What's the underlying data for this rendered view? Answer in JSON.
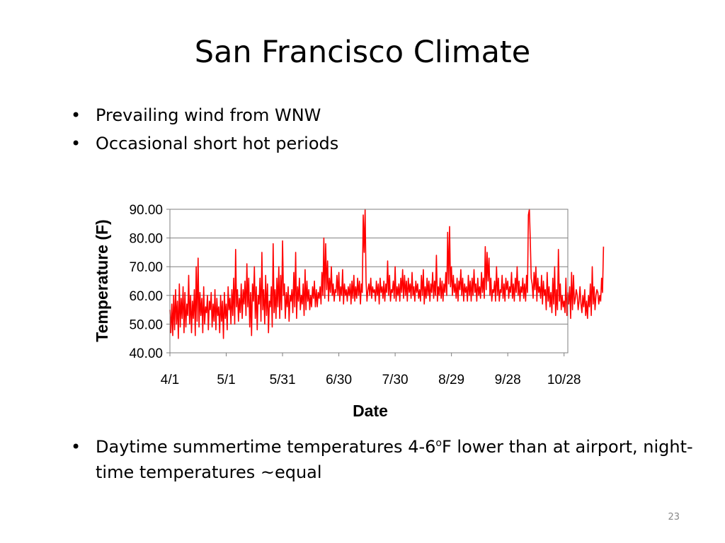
{
  "slide": {
    "title": "San Francisco Climate",
    "bullets": [
      "Prevailing wind from WNW",
      "Occasional short hot periods"
    ],
    "bottom_bullet": {
      "text_before": "Daytime summertime temperatures 4-6",
      "superscript": "o",
      "text_after": "F lower than at airport, night-time temperatures ~equal"
    },
    "bullet_glyph": "•",
    "page_number": "23"
  },
  "colors": {
    "series": "#ff0000",
    "gridline": "#7f7f7f",
    "axis": "#7f7f7f"
  },
  "chart_data": {
    "type": "line",
    "title": "",
    "xlabel": "Date",
    "ylabel": "Temperature (F)",
    "ylim": [
      40,
      90
    ],
    "y_ticks": [
      "40.00",
      "50.00",
      "60.00",
      "70.00",
      "80.00",
      "90.00"
    ],
    "x_ticks": [
      "4/1",
      "5/1",
      "5/31",
      "6/30",
      "7/30",
      "8/29",
      "9/28",
      "10/28"
    ],
    "x_range_days": [
      0,
      212
    ],
    "grid": "horizontal",
    "legend": "none",
    "series": [
      {
        "name": "",
        "x_day_step": 0.5,
        "values": [
          55,
          47,
          57,
          46,
          60,
          48,
          62,
          50,
          58,
          45,
          64,
          49,
          59,
          52,
          63,
          47,
          61,
          49,
          57,
          53,
          67,
          50,
          60,
          47,
          58,
          52,
          62,
          46,
          70,
          51,
          73,
          49,
          61,
          53,
          59,
          47,
          63,
          50,
          56,
          54,
          60,
          48,
          58,
          55,
          61,
          49,
          57,
          51,
          62,
          48,
          59,
          53,
          56,
          47,
          60,
          51,
          58,
          45,
          61,
          52,
          57,
          48,
          63,
          55,
          59,
          50,
          62,
          53,
          66,
          50,
          76,
          56,
          62,
          51,
          59,
          54,
          64,
          52,
          62,
          57,
          65,
          53,
          71,
          56,
          66,
          49,
          61,
          46,
          64,
          58,
          70,
          52,
          63,
          48,
          60,
          57,
          66,
          51,
          75,
          55,
          62,
          50,
          67,
          53,
          64,
          47,
          58,
          56,
          63,
          49,
          78,
          54,
          62,
          52,
          66,
          56,
          70,
          52,
          67,
          55,
          79,
          60,
          64,
          52,
          61,
          56,
          63,
          51,
          60,
          58,
          62,
          54,
          68,
          56,
          75,
          52,
          63,
          58,
          66,
          55,
          60,
          57,
          64,
          53,
          69,
          55,
          65,
          58,
          62,
          55,
          60,
          56,
          63,
          59,
          65,
          56,
          62,
          56,
          61,
          59,
          63,
          57,
          68,
          60,
          80,
          59,
          78,
          62,
          72,
          58,
          66,
          61,
          70,
          60,
          64,
          58,
          62,
          61,
          67,
          60,
          68,
          58,
          63,
          60,
          69,
          57,
          64,
          60,
          62,
          58,
          63,
          60,
          64,
          57,
          65,
          59,
          67,
          58,
          63,
          59,
          66,
          60,
          65,
          57,
          64,
          61,
          88,
          75,
          90,
          65,
          58,
          62,
          64,
          60,
          66,
          59,
          63,
          61,
          62,
          58,
          65,
          60,
          64,
          57,
          66,
          61,
          63,
          59,
          65,
          58,
          64,
          61,
          72,
          60,
          67,
          58,
          62,
          61,
          65,
          59,
          70,
          58,
          63,
          60,
          64,
          58,
          66,
          61,
          69,
          59,
          67,
          60,
          65,
          58,
          66,
          61,
          64,
          59,
          68,
          60,
          63,
          58,
          65,
          61,
          64,
          59,
          62,
          58,
          67,
          60,
          69,
          57,
          63,
          59,
          66,
          60,
          65,
          58,
          64,
          61,
          68,
          59,
          65,
          60,
          74,
          58,
          63,
          60,
          66,
          59,
          65,
          58,
          64,
          61,
          68,
          60,
          82,
          64,
          84,
          63,
          70,
          60,
          67,
          61,
          64,
          59,
          66,
          58,
          65,
          62,
          69,
          60,
          66,
          58,
          64,
          61,
          63,
          58,
          67,
          60,
          65,
          58,
          66,
          60,
          69,
          61,
          64,
          58,
          66,
          60,
          63,
          59,
          68,
          61,
          66,
          59,
          77,
          62,
          75,
          65,
          73,
          60,
          66,
          58,
          62,
          61,
          65,
          58,
          70,
          60,
          66,
          58,
          62,
          61,
          67,
          59,
          64,
          58,
          66,
          62,
          65,
          59,
          63,
          61,
          68,
          59,
          64,
          58,
          66,
          61,
          70,
          60,
          65,
          58,
          63,
          61,
          66,
          59,
          64,
          58,
          67,
          61,
          88,
          90,
          79,
          66,
          64,
          59,
          68,
          62,
          70,
          58,
          66,
          61,
          63,
          59,
          67,
          57,
          65,
          60,
          62,
          55,
          68,
          58,
          63,
          56,
          61,
          54,
          66,
          57,
          70,
          53,
          62,
          55,
          76,
          58,
          64,
          55,
          60,
          56,
          58,
          54,
          66,
          53,
          61,
          57,
          63,
          52,
          68,
          55,
          67,
          57,
          59,
          62,
          60,
          55,
          58,
          63,
          57,
          54,
          60,
          56,
          62,
          53,
          58,
          52,
          60,
          56,
          64,
          53,
          70,
          57,
          63,
          55,
          60,
          62,
          61,
          57,
          60,
          58,
          66,
          61,
          77
        ]
      }
    ]
  }
}
